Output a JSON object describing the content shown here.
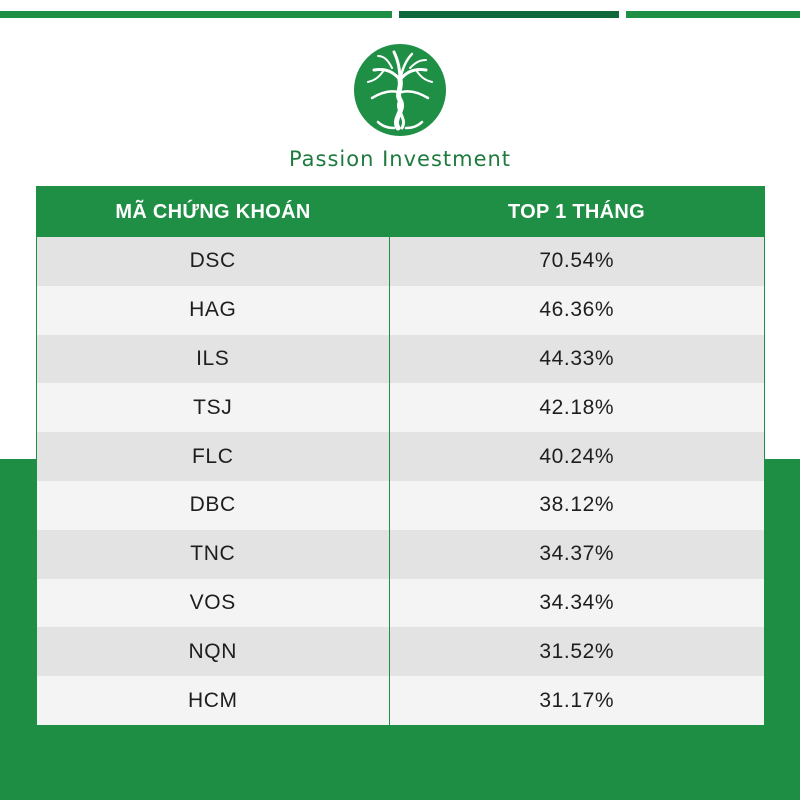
{
  "brand": {
    "name": "Passion Investment",
    "colors": {
      "primary": "#1f8f45",
      "dark": "#11683a"
    }
  },
  "table": {
    "headers": [
      "MÃ CHỨNG KHOÁN",
      "TOP 1 THÁNG"
    ],
    "rows": [
      {
        "code": "DSC",
        "value": "70.54%"
      },
      {
        "code": "HAG",
        "value": "46.36%"
      },
      {
        "code": "ILS",
        "value": "44.33%"
      },
      {
        "code": "TSJ",
        "value": "42.18%"
      },
      {
        "code": "FLC",
        "value": "40.24%"
      },
      {
        "code": "DBC",
        "value": "38.12%"
      },
      {
        "code": "TNC",
        "value": "34.37%"
      },
      {
        "code": "VOS",
        "value": "34.34%"
      },
      {
        "code": "NQN",
        "value": "31.52%"
      },
      {
        "code": "HCM",
        "value": "31.17%"
      }
    ]
  }
}
